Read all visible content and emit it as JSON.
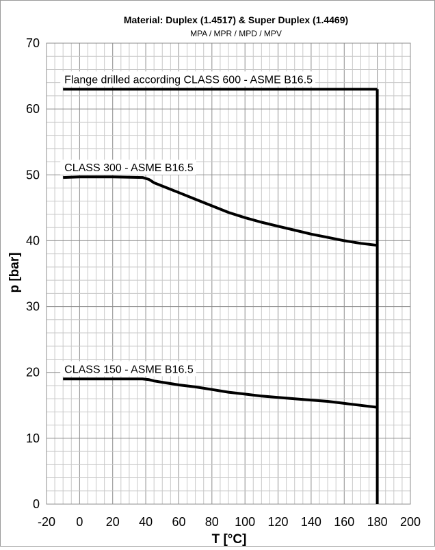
{
  "chart_data": {
    "type": "line",
    "title": "Material: Duplex (1.4517) & Super Duplex (1.4469)",
    "subtitle": "MPA / MPR / MPD / MPV",
    "xlabel": "T [°C]",
    "ylabel": "p [bar]",
    "xlim": [
      -20,
      200
    ],
    "ylim": [
      0,
      70
    ],
    "x_ticks": [
      "-20",
      "0",
      "20",
      "40",
      "60",
      "80",
      "100",
      "120",
      "140",
      "160",
      "180",
      "200"
    ],
    "y_ticks": [
      "0",
      "10",
      "20",
      "30",
      "40",
      "50",
      "60",
      "70"
    ],
    "grid": true,
    "series": [
      {
        "name": "Flange drilled according CLASS 600 - ASME B16.5",
        "x": [
          -10,
          180
        ],
        "y": [
          63,
          63
        ]
      },
      {
        "name": "CLASS 300 - ASME B16.5",
        "x": [
          -10,
          0,
          20,
          38,
          42,
          45,
          50,
          60,
          70,
          80,
          90,
          100,
          110,
          120,
          130,
          140,
          150,
          160,
          170,
          180
        ],
        "y": [
          49.6,
          49.7,
          49.7,
          49.6,
          49.3,
          48.8,
          48.3,
          47.3,
          46.3,
          45.3,
          44.3,
          43.5,
          42.8,
          42.2,
          41.6,
          41.0,
          40.5,
          40.0,
          39.6,
          39.3
        ]
      },
      {
        "name": "CLASS 150 - ASME B16.5",
        "x": [
          -10,
          0,
          20,
          38,
          42,
          45,
          50,
          60,
          70,
          80,
          90,
          100,
          110,
          120,
          130,
          140,
          150,
          160,
          170,
          180
        ],
        "y": [
          19.0,
          19.0,
          19.0,
          19.0,
          18.9,
          18.7,
          18.5,
          18.1,
          17.8,
          17.4,
          17.0,
          16.7,
          16.4,
          16.2,
          16.0,
          15.8,
          15.6,
          15.3,
          15.0,
          14.7
        ]
      },
      {
        "name": "",
        "x": [
          180,
          180
        ],
        "y": [
          0,
          63
        ]
      }
    ]
  }
}
